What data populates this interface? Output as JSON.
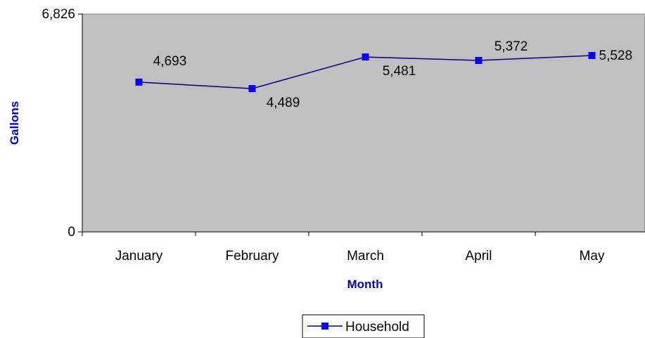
{
  "chart_data": {
    "type": "line",
    "categories": [
      "January",
      "February",
      "March",
      "April",
      "May"
    ],
    "series": [
      {
        "name": "Household",
        "values": [
          4693,
          4489,
          5481,
          5372,
          5528
        ],
        "color": "#000080",
        "marker_color": "#0000ff"
      }
    ],
    "data_labels": [
      "4,693",
      "4,489",
      "5,481",
      "5,372",
      "5,528"
    ],
    "xlabel": "Month",
    "ylabel": "Gallons",
    "ylim": [
      0,
      6826
    ],
    "y_tick_labels": [
      "0",
      "6,826"
    ],
    "grid": false,
    "legend": "bottom-center",
    "plot_background": "#c0c0c0",
    "axis_title_color": "#0000cc"
  }
}
